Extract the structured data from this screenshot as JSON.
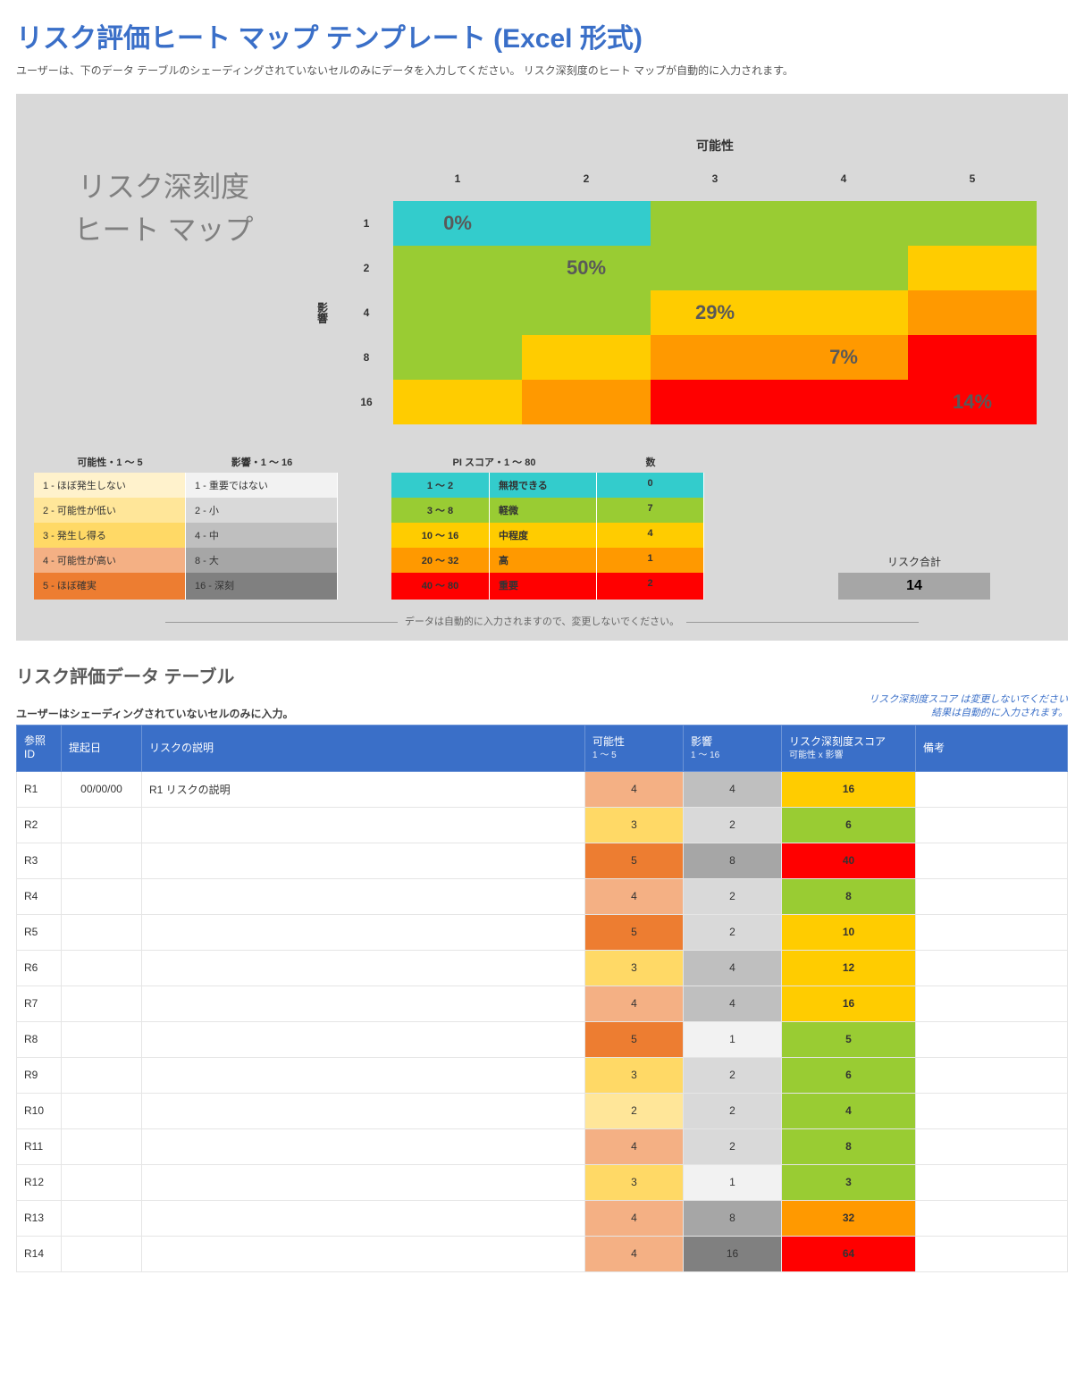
{
  "title": "リスク評価ヒート マップ テンプレート (Excel 形式)",
  "intro": "ユーザーは、下のデータ テーブルのシェーディングされていないセルのみにデータを入力してください。 リスク深刻度のヒート マップが自動的に入力されます。",
  "heatmap": {
    "big_title_line1": "リスク深刻度",
    "big_title_line2": "ヒート マップ",
    "col_axis_title": "可能性",
    "row_axis_title": "影響",
    "col_headers": [
      "1",
      "2",
      "3",
      "4",
      "5"
    ],
    "row_headers": [
      "1",
      "2",
      "4",
      "8",
      "16"
    ],
    "colors": {
      "teal": "#33cccc",
      "lime": "#99cc33",
      "yellow": "#ffc000",
      "gold": "#ffcc00",
      "orange": "#ff9900",
      "red": "#ff0000",
      "gray_bg": "#d9d9d9",
      "val_font": "#595959"
    },
    "cells": [
      [
        {
          "c": "teal",
          "v": "0%"
        },
        {
          "c": "teal",
          "v": ""
        },
        {
          "c": "lime",
          "v": ""
        },
        {
          "c": "lime",
          "v": ""
        },
        {
          "c": "lime",
          "v": ""
        }
      ],
      [
        {
          "c": "lime",
          "v": ""
        },
        {
          "c": "lime",
          "v": "50%"
        },
        {
          "c": "lime",
          "v": ""
        },
        {
          "c": "lime",
          "v": ""
        },
        {
          "c": "gold",
          "v": ""
        }
      ],
      [
        {
          "c": "lime",
          "v": ""
        },
        {
          "c": "lime",
          "v": ""
        },
        {
          "c": "gold",
          "v": "29%"
        },
        {
          "c": "gold",
          "v": ""
        },
        {
          "c": "orange",
          "v": ""
        }
      ],
      [
        {
          "c": "lime",
          "v": ""
        },
        {
          "c": "gold",
          "v": ""
        },
        {
          "c": "orange",
          "v": ""
        },
        {
          "c": "orange",
          "v": "7%"
        },
        {
          "c": "red",
          "v": ""
        }
      ],
      [
        {
          "c": "gold",
          "v": ""
        },
        {
          "c": "orange",
          "v": ""
        },
        {
          "c": "red",
          "v": ""
        },
        {
          "c": "red",
          "v": ""
        },
        {
          "c": "red",
          "v": "14%"
        }
      ]
    ]
  },
  "legend_prob": {
    "title": "可能性・1 ～ 5",
    "rows": [
      {
        "label": "1 - ほぼ発生しない",
        "color": "#fff2cc"
      },
      {
        "label": "2 - 可能性が低い",
        "color": "#ffe699"
      },
      {
        "label": "3 - 発生し得る",
        "color": "#ffd966"
      },
      {
        "label": "4 - 可能性が高い",
        "color": "#f4b084"
      },
      {
        "label": "5 - ほぼ確実",
        "color": "#ed7d31"
      }
    ]
  },
  "legend_impact": {
    "title": "影響・1 ～ 16",
    "rows": [
      {
        "label": "1 - 重要ではない",
        "color": "#f2f2f2"
      },
      {
        "label": "2 - 小",
        "color": "#d9d9d9"
      },
      {
        "label": "4 - 中",
        "color": "#bfbfbf"
      },
      {
        "label": "8 - 大",
        "color": "#a6a6a6"
      },
      {
        "label": "16 - 深刻",
        "color": "#808080"
      }
    ]
  },
  "legend_pi": {
    "title": "PI スコア・1 ～ 80",
    "count_title": "数",
    "rows": [
      {
        "range": "1 ～ 2",
        "label": "無視できる",
        "count": "0",
        "color": "#33cccc"
      },
      {
        "range": "3 ～ 8",
        "label": "軽微",
        "count": "7",
        "color": "#99cc33"
      },
      {
        "range": "10 ～ 16",
        "label": "中程度",
        "count": "4",
        "color": "#ffcc00"
      },
      {
        "range": "20 ～ 32",
        "label": "高",
        "count": "1",
        "color": "#ff9900"
      },
      {
        "range": "40 ～ 80",
        "label": "重要",
        "count": "2",
        "color": "#ff0000"
      }
    ]
  },
  "total_label": "リスク合計",
  "total_value": "14",
  "autodata_note": "データは自動的に入力されますので、変更しないでください。",
  "table_section": {
    "title": "リスク評価データ テーブル",
    "intro": "ユーザーはシェーディングされていないセルのみに入力。",
    "note_line1": "リスク深刻度スコア は変更しないでください",
    "note_line2": "結果は自動的に入力されます。",
    "headers": {
      "ref": "参照\nID",
      "date": "提起日",
      "desc": "リスクの説明",
      "prob": "可能性",
      "prob_sub": "1 ～ 5",
      "impact": "影響",
      "impact_sub": "1 ～ 16",
      "score": "リスク深刻度スコア",
      "score_sub": "可能性 x 影響",
      "notes": "備考"
    },
    "prob_colors": {
      "1": "#fff2cc",
      "2": "#ffe699",
      "3": "#ffd966",
      "4": "#f4b084",
      "5": "#ed7d31"
    },
    "impact_colors": {
      "1": "#f2f2f2",
      "2": "#d9d9d9",
      "4": "#bfbfbf",
      "8": "#a6a6a6",
      "16": "#808080"
    },
    "rows": [
      {
        "id": "R1",
        "date": "00/00/00",
        "desc": "R1 リスクの説明",
        "prob": 4,
        "impact": 4,
        "score": 16,
        "score_color": "#ffcc00"
      },
      {
        "id": "R2",
        "date": "",
        "desc": "",
        "prob": 3,
        "impact": 2,
        "score": 6,
        "score_color": "#99cc33"
      },
      {
        "id": "R3",
        "date": "",
        "desc": "",
        "prob": 5,
        "impact": 8,
        "score": 40,
        "score_color": "#ff0000"
      },
      {
        "id": "R4",
        "date": "",
        "desc": "",
        "prob": 4,
        "impact": 2,
        "score": 8,
        "score_color": "#99cc33"
      },
      {
        "id": "R5",
        "date": "",
        "desc": "",
        "prob": 5,
        "impact": 2,
        "score": 10,
        "score_color": "#ffcc00"
      },
      {
        "id": "R6",
        "date": "",
        "desc": "",
        "prob": 3,
        "impact": 4,
        "score": 12,
        "score_color": "#ffcc00"
      },
      {
        "id": "R7",
        "date": "",
        "desc": "",
        "prob": 4,
        "impact": 4,
        "score": 16,
        "score_color": "#ffcc00"
      },
      {
        "id": "R8",
        "date": "",
        "desc": "",
        "prob": 5,
        "impact": 1,
        "score": 5,
        "score_color": "#99cc33"
      },
      {
        "id": "R9",
        "date": "",
        "desc": "",
        "prob": 3,
        "impact": 2,
        "score": 6,
        "score_color": "#99cc33"
      },
      {
        "id": "R10",
        "date": "",
        "desc": "",
        "prob": 2,
        "impact": 2,
        "score": 4,
        "score_color": "#99cc33"
      },
      {
        "id": "R11",
        "date": "",
        "desc": "",
        "prob": 4,
        "impact": 2,
        "score": 8,
        "score_color": "#99cc33"
      },
      {
        "id": "R12",
        "date": "",
        "desc": "",
        "prob": 3,
        "impact": 1,
        "score": 3,
        "score_color": "#99cc33"
      },
      {
        "id": "R13",
        "date": "",
        "desc": "",
        "prob": 4,
        "impact": 8,
        "score": 32,
        "score_color": "#ff9900"
      },
      {
        "id": "R14",
        "date": "",
        "desc": "",
        "prob": 4,
        "impact": 16,
        "score": 64,
        "score_color": "#ff0000"
      }
    ]
  }
}
